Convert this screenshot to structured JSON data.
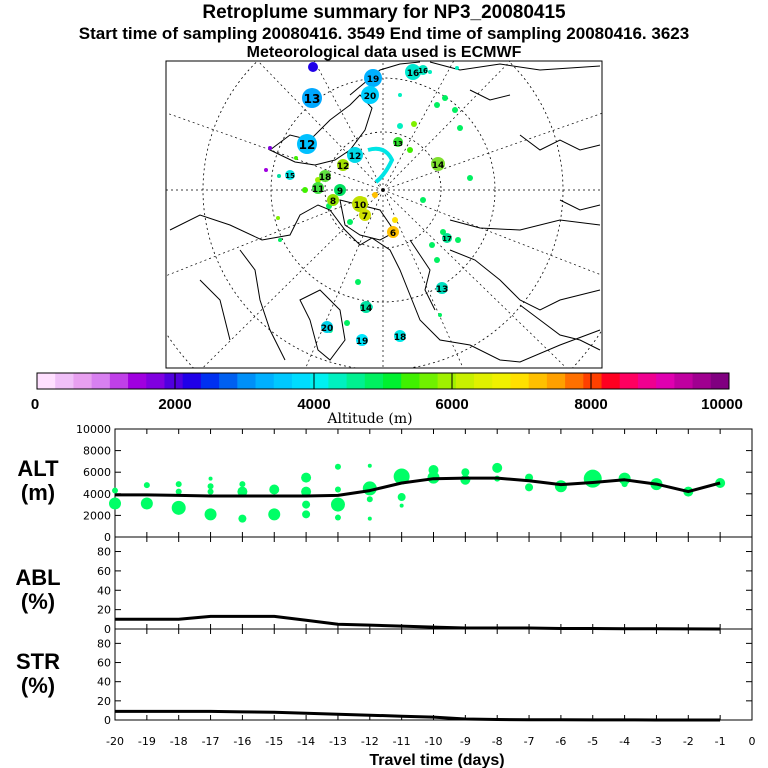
{
  "header": {
    "title": "Retroplume summary for NP3_20080415",
    "sampling_line": "Start time of sampling 20080416.  3549     End time of sampling 20080416.  3623",
    "met_line": "Meteorological data used is ECMWF"
  },
  "map": {
    "center_marker_color": "#00e5e5",
    "labels": [
      {
        "t": "16",
        "c": "#00e8d0"
      },
      {
        "t": "19",
        "c": "#00b0ff"
      },
      {
        "t": "13",
        "c": "#00a8ff"
      },
      {
        "t": "12",
        "c": "#00c0ff"
      },
      {
        "t": "20",
        "c": "#00d0ff"
      },
      {
        "t": "12",
        "c": "#00d8e8"
      },
      {
        "t": "14",
        "c": "#80e030"
      },
      {
        "t": "10",
        "c": "#c0e000"
      },
      {
        "t": "9",
        "c": "#00e060"
      },
      {
        "t": "8",
        "c": "#90e000"
      },
      {
        "t": "7",
        "c": "#d0e000"
      },
      {
        "t": "6",
        "c": "#ffc000"
      },
      {
        "t": "13",
        "c": "#00e0c0"
      },
      {
        "t": "14",
        "c": "#00e0a0"
      },
      {
        "t": "19",
        "c": "#00e8ff"
      },
      {
        "t": "18",
        "c": "#00e8e8"
      },
      {
        "t": "20",
        "c": "#00d0e8"
      },
      {
        "t": "13",
        "c": "#30e030"
      },
      {
        "t": "11",
        "c": "#40e040"
      },
      {
        "t": "16",
        "c": "#00e8c0"
      },
      {
        "t": "17",
        "c": "#00e090"
      },
      {
        "t": "18",
        "c": "#60e040"
      },
      {
        "t": "12",
        "c": "#a0e000"
      },
      {
        "t": "15",
        "c": "#00e0e0"
      }
    ]
  },
  "colorbar": {
    "colors": [
      "#ffe0ff",
      "#f0c0f8",
      "#e8a0f0",
      "#d880f0",
      "#c040e8",
      "#a000e0",
      "#8000e0",
      "#5000e0",
      "#2000e8",
      "#0030f0",
      "#0060f0",
      "#0090f8",
      "#00b0ff",
      "#00c8ff",
      "#00dcff",
      "#00f0f0",
      "#00f0c0",
      "#00f090",
      "#00f060",
      "#00f030",
      "#40f000",
      "#70f000",
      "#a0f000",
      "#c8f000",
      "#e0f000",
      "#f0f000",
      "#ffe000",
      "#ffc000",
      "#ffa000",
      "#ff7000",
      "#ff4000",
      "#ff0020",
      "#ff0060",
      "#f00090",
      "#e000b0",
      "#c000a0",
      "#a00090",
      "#800080"
    ],
    "tick_labels": [
      "0",
      "2000",
      "4000",
      "6000",
      "8000",
      "10000"
    ],
    "label": "Altitude (m)"
  },
  "chart_data": [
    {
      "type": "line",
      "panel": "ALT",
      "ylabel": "ALT\n(m)",
      "ylabel_line1": "ALT",
      "ylabel_line2": "(m)",
      "ylim": [
        0,
        10000
      ],
      "yticks": [
        "0",
        "2000",
        "4000",
        "6000",
        "8000",
        "10000"
      ],
      "x": [
        -20,
        -19,
        -18,
        -17,
        -16,
        -15,
        -14,
        -13,
        -12,
        -11,
        -10,
        -9,
        -8,
        -7,
        -6,
        -5,
        -4,
        -3,
        -2,
        -1
      ],
      "values": [
        3900,
        3900,
        3850,
        3800,
        3800,
        3800,
        3800,
        3850,
        4300,
        5000,
        5400,
        5450,
        5450,
        5200,
        4850,
        5050,
        5300,
        4900,
        4200,
        5000
      ],
      "scatter": [
        {
          "x": -20,
          "y": 3100,
          "r": 6
        },
        {
          "x": -20,
          "y": 4300,
          "r": 3
        },
        {
          "x": -19,
          "y": 3100,
          "r": 6
        },
        {
          "x": -19,
          "y": 4800,
          "r": 3
        },
        {
          "x": -18,
          "y": 2700,
          "r": 7
        },
        {
          "x": -18,
          "y": 4200,
          "r": 3
        },
        {
          "x": -18,
          "y": 4900,
          "r": 3
        },
        {
          "x": -17,
          "y": 2100,
          "r": 6
        },
        {
          "x": -17,
          "y": 4200,
          "r": 3
        },
        {
          "x": -17,
          "y": 4700,
          "r": 3
        },
        {
          "x": -17,
          "y": 5400,
          "r": 2
        },
        {
          "x": -16,
          "y": 1700,
          "r": 4
        },
        {
          "x": -16,
          "y": 4200,
          "r": 5
        },
        {
          "x": -16,
          "y": 4900,
          "r": 3
        },
        {
          "x": -15,
          "y": 2100,
          "r": 6
        },
        {
          "x": -15,
          "y": 4400,
          "r": 5
        },
        {
          "x": -14,
          "y": 2100,
          "r": 4
        },
        {
          "x": -14,
          "y": 3000,
          "r": 4
        },
        {
          "x": -14,
          "y": 4200,
          "r": 5
        },
        {
          "x": -14,
          "y": 5500,
          "r": 5
        },
        {
          "x": -13,
          "y": 1800,
          "r": 3
        },
        {
          "x": -13,
          "y": 3000,
          "r": 7
        },
        {
          "x": -13,
          "y": 4400,
          "r": 3
        },
        {
          "x": -13,
          "y": 6500,
          "r": 3
        },
        {
          "x": -12,
          "y": 1700,
          "r": 2
        },
        {
          "x": -12,
          "y": 3500,
          "r": 3
        },
        {
          "x": -12,
          "y": 4500,
          "r": 7
        },
        {
          "x": -12,
          "y": 6600,
          "r": 2
        },
        {
          "x": -11,
          "y": 2900,
          "r": 2
        },
        {
          "x": -11,
          "y": 3700,
          "r": 4
        },
        {
          "x": -11,
          "y": 5600,
          "r": 8
        },
        {
          "x": -10,
          "y": 5500,
          "r": 6
        },
        {
          "x": -10,
          "y": 6200,
          "r": 5
        },
        {
          "x": -9,
          "y": 5300,
          "r": 5
        },
        {
          "x": -9,
          "y": 6000,
          "r": 4
        },
        {
          "x": -8,
          "y": 5400,
          "r": 3
        },
        {
          "x": -8,
          "y": 6400,
          "r": 5
        },
        {
          "x": -7,
          "y": 4600,
          "r": 4
        },
        {
          "x": -7,
          "y": 5500,
          "r": 4
        },
        {
          "x": -6,
          "y": 4700,
          "r": 6
        },
        {
          "x": -5,
          "y": 5400,
          "r": 9
        },
        {
          "x": -4,
          "y": 4900,
          "r": 3
        },
        {
          "x": -4,
          "y": 5400,
          "r": 6
        },
        {
          "x": -3,
          "y": 4900,
          "r": 6
        },
        {
          "x": -2,
          "y": 4200,
          "r": 5
        },
        {
          "x": -1,
          "y": 5000,
          "r": 5
        }
      ],
      "scatter_color": "#00ff66"
    },
    {
      "type": "line",
      "panel": "ABL",
      "ylabel_line1": "ABL",
      "ylabel_line2": "(%)",
      "ylim": [
        0,
        95
      ],
      "yticks": [
        "0",
        "20",
        "40",
        "60",
        "80"
      ],
      "x": [
        -20,
        -19,
        -18,
        -17,
        -16,
        -15,
        -14,
        -13,
        -12,
        -11,
        -10,
        -9,
        -8,
        -7,
        -6,
        -5,
        -4,
        -3,
        -2,
        -1
      ],
      "values": [
        10,
        10,
        10,
        13,
        13,
        13,
        9,
        5,
        4,
        3,
        2,
        1,
        1,
        1,
        0.5,
        0.5,
        0.3,
        0.2,
        0.1,
        0
      ]
    },
    {
      "type": "line",
      "panel": "STR",
      "ylabel_line1": "STR",
      "ylabel_line2": "(%)",
      "ylim": [
        0,
        95
      ],
      "yticks": [
        "0",
        "20",
        "40",
        "60",
        "80"
      ],
      "xticks": [
        "-20",
        "-19",
        "-18",
        "-17",
        "-16",
        "-15",
        "-14",
        "-13",
        "-12",
        "-11",
        "-10",
        "-9",
        "-8",
        "-7",
        "-6",
        "-5",
        "-4",
        "-3",
        "-2",
        "-1",
        "0"
      ],
      "xlabel": "Travel time (days)",
      "x": [
        -20,
        -19,
        -18,
        -17,
        -16,
        -15,
        -14,
        -13,
        -12,
        -11,
        -10,
        -9,
        -8,
        -7,
        -6,
        -5,
        -4,
        -3,
        -2,
        -1
      ],
      "values": [
        9,
        9,
        9,
        9,
        8.5,
        8,
        7,
        6,
        5,
        4,
        3,
        1,
        0.5,
        0.3,
        0.2,
        0.1,
        0.1,
        0,
        0,
        0
      ]
    }
  ]
}
